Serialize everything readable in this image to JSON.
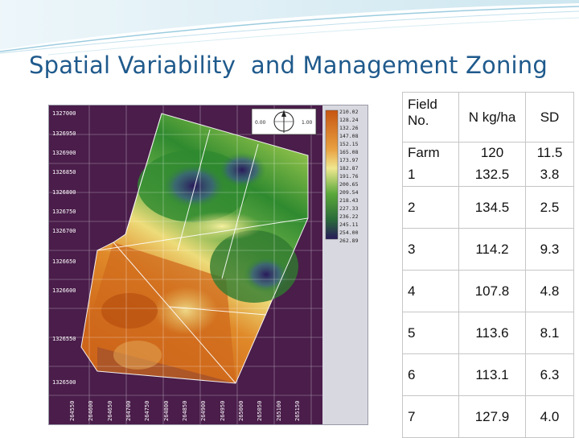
{
  "slide": {
    "title": "Spatial Variability  and Management Zoning"
  },
  "map": {
    "north_arrow_left": "0.00",
    "north_arrow_right": "1.00",
    "y_axis_labels": [
      "1327000",
      "1326950",
      "1326900",
      "1326850",
      "1326800",
      "1326750",
      "1326700",
      "1326650",
      "1326600",
      "1326550",
      "1326500"
    ],
    "x_axis_labels": [
      "264550",
      "264600",
      "264650",
      "264700",
      "264750",
      "264800",
      "264850",
      "264900",
      "264950",
      "265000",
      "265050",
      "265100",
      "265150"
    ],
    "legend_values": [
      "210.02",
      "128.24",
      "132.26",
      "147.08",
      "152.15",
      "165.08",
      "173.97",
      "182.87",
      "191.76",
      "200.65",
      "209.54",
      "218.43",
      "227.33",
      "236.22",
      "245.11",
      "254.00",
      "262.89"
    ],
    "colors": {
      "background": "#4a1d4a",
      "low": "#c75a12",
      "mid": "#e8e070",
      "green": "#2f8a2f",
      "high": "#2a1a5a"
    }
  },
  "table": {
    "headers": [
      "Field No.",
      "N kg/ha",
      "SD"
    ],
    "rows": [
      [
        "Farm",
        "120",
        "11.5"
      ],
      [
        "1",
        "132.5",
        "3.8"
      ],
      [
        "2",
        "134.5",
        "2.5"
      ],
      [
        "3",
        "114.2",
        "9.3"
      ],
      [
        "4",
        "107.8",
        "4.8"
      ],
      [
        "5",
        "113.6",
        "8.1"
      ],
      [
        "6",
        "113.1",
        "6.3"
      ],
      [
        "7",
        "127.9",
        "4.0"
      ]
    ]
  }
}
